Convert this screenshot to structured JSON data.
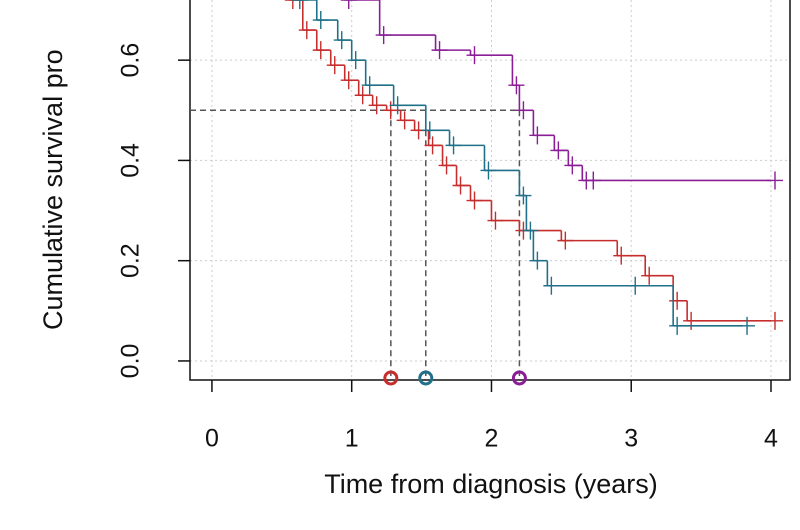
{
  "chart_data": {
    "type": "step",
    "xlabel": "Time from diagnosis (years)",
    "ylabel": "Cumulative survival pro",
    "xlim": [
      -0.157,
      4.136
    ],
    "ylim": [
      -0.038,
      0.72
    ],
    "xticks": [
      0,
      1,
      2,
      3,
      4
    ],
    "yticks": [
      {
        "value": 0,
        "label": "0.0"
      },
      {
        "value": 0.2,
        "label": "0.2"
      },
      {
        "value": 0.4,
        "label": "0.4"
      },
      {
        "value": 0.6,
        "label": "0.6"
      }
    ],
    "grid": true,
    "median_level": 0.5,
    "series": [
      {
        "color": "#c62d2d",
        "median": 1.28,
        "x": [
          0.55,
          0.65,
          0.75,
          0.85,
          0.95,
          1.05,
          1.15,
          1.25,
          1.35,
          1.45,
          1.55,
          1.65,
          1.75,
          1.85,
          2.0,
          2.2,
          2.5,
          2.9,
          3.1,
          3.3,
          3.4,
          4.0
        ],
        "values": [
          0.72,
          0.66,
          0.62,
          0.59,
          0.56,
          0.53,
          0.51,
          0.5,
          0.48,
          0.46,
          0.43,
          0.39,
          0.35,
          0.32,
          0.28,
          0.26,
          0.24,
          0.21,
          0.17,
          0.12,
          0.08,
          0.08
        ]
      },
      {
        "color": "#1f7088",
        "median": 1.53,
        "x": [
          0.6,
          0.75,
          0.9,
          1.0,
          1.1,
          1.3,
          1.53,
          1.7,
          1.95,
          2.2,
          2.25,
          2.3,
          2.4,
          3.0,
          3.3,
          3.8
        ],
        "values": [
          0.72,
          0.68,
          0.64,
          0.6,
          0.55,
          0.51,
          0.46,
          0.43,
          0.38,
          0.33,
          0.26,
          0.2,
          0.15,
          0.15,
          0.07,
          0.07
        ]
      },
      {
        "color": "#8a1e96",
        "median": 2.2,
        "x": [
          0.95,
          1.2,
          1.6,
          1.85,
          2.15,
          2.2,
          2.3,
          2.45,
          2.55,
          2.65,
          2.7,
          4.0
        ],
        "values": [
          0.72,
          0.65,
          0.62,
          0.61,
          0.55,
          0.5,
          0.45,
          0.42,
          0.39,
          0.36,
          0.36,
          0.36
        ]
      }
    ]
  }
}
